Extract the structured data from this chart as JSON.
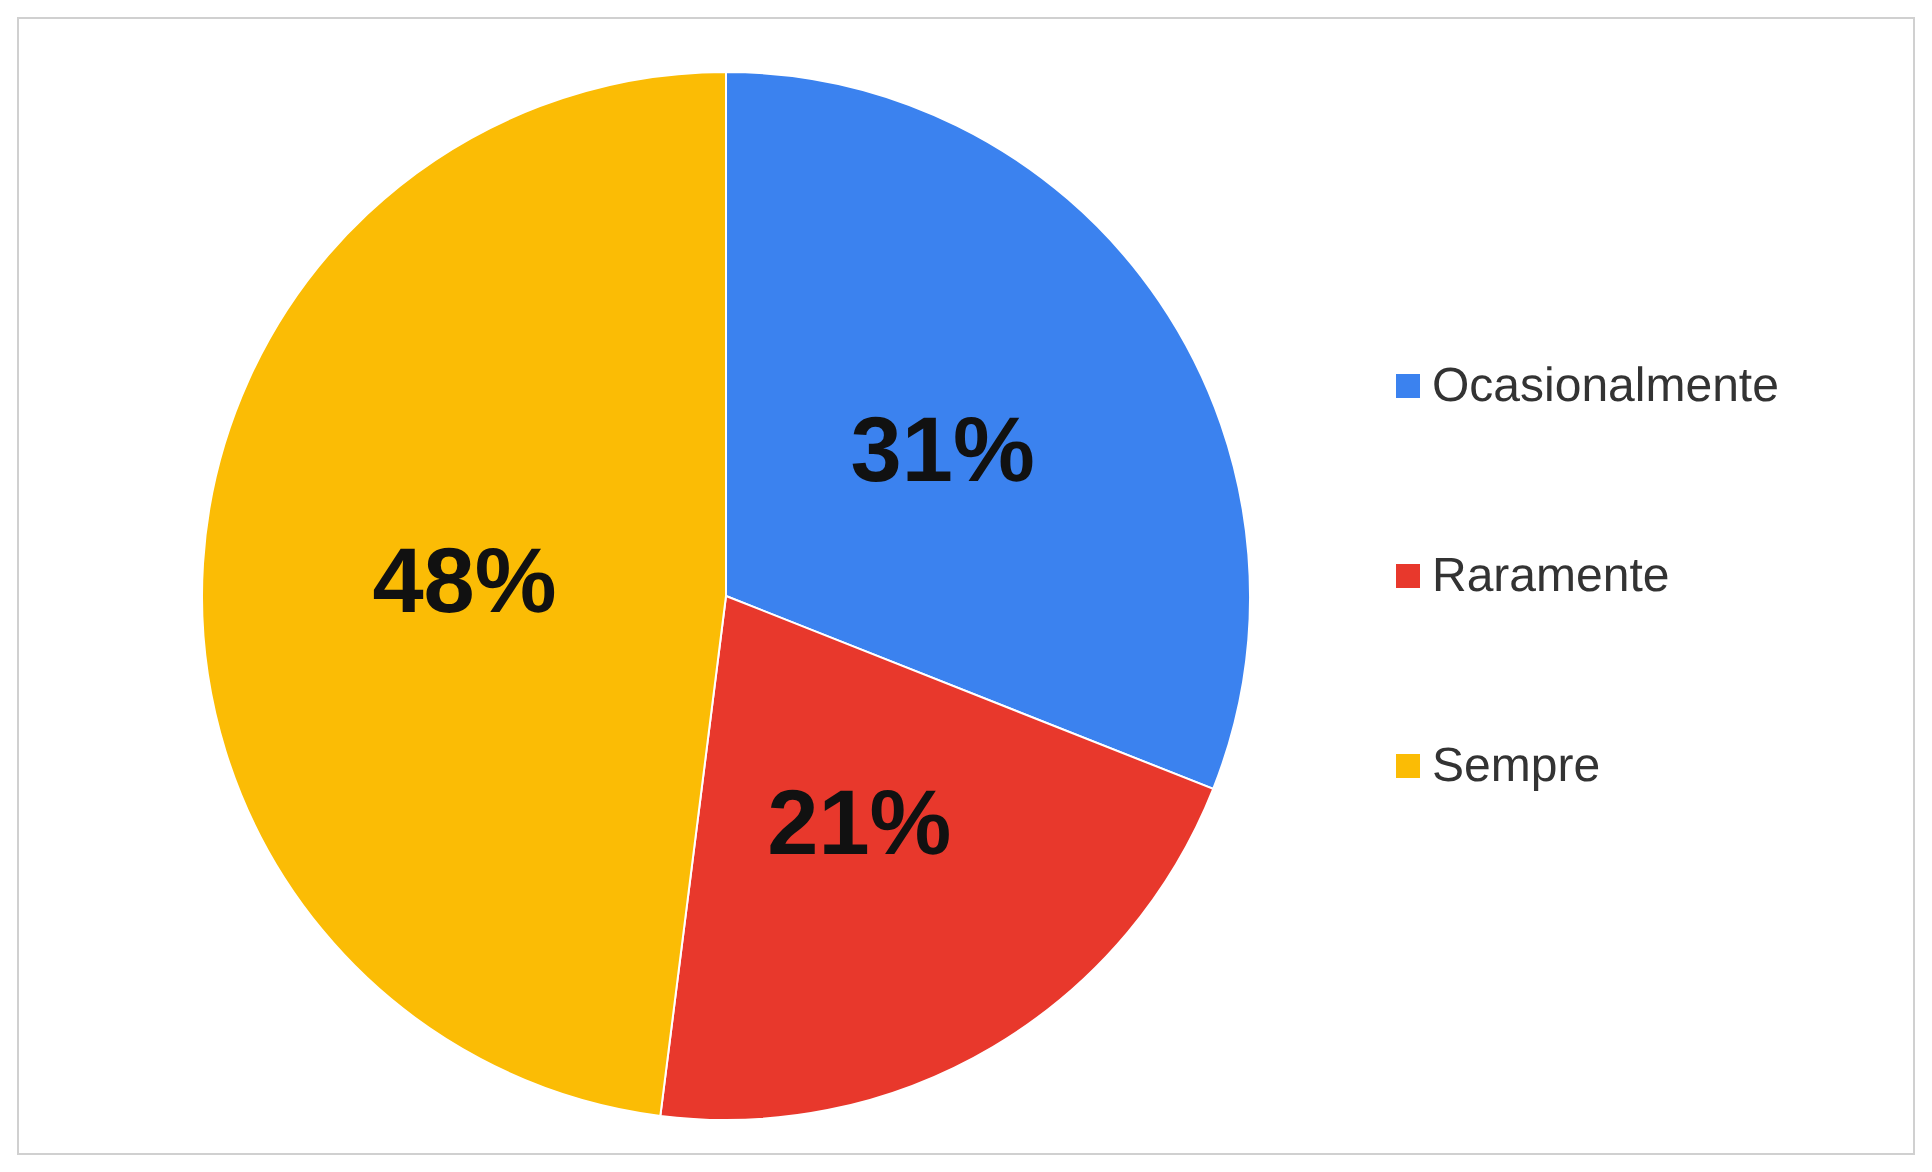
{
  "chart_data": {
    "type": "pie",
    "categories": [
      "Ocasionalmente",
      "Raramente",
      "Sempre"
    ],
    "values": [
      31,
      21,
      48
    ],
    "value_labels": [
      "31%",
      "21%",
      "48%"
    ],
    "colors": [
      "#3b82ef",
      "#e8382c",
      "#fbbc05"
    ],
    "legend": "right"
  }
}
